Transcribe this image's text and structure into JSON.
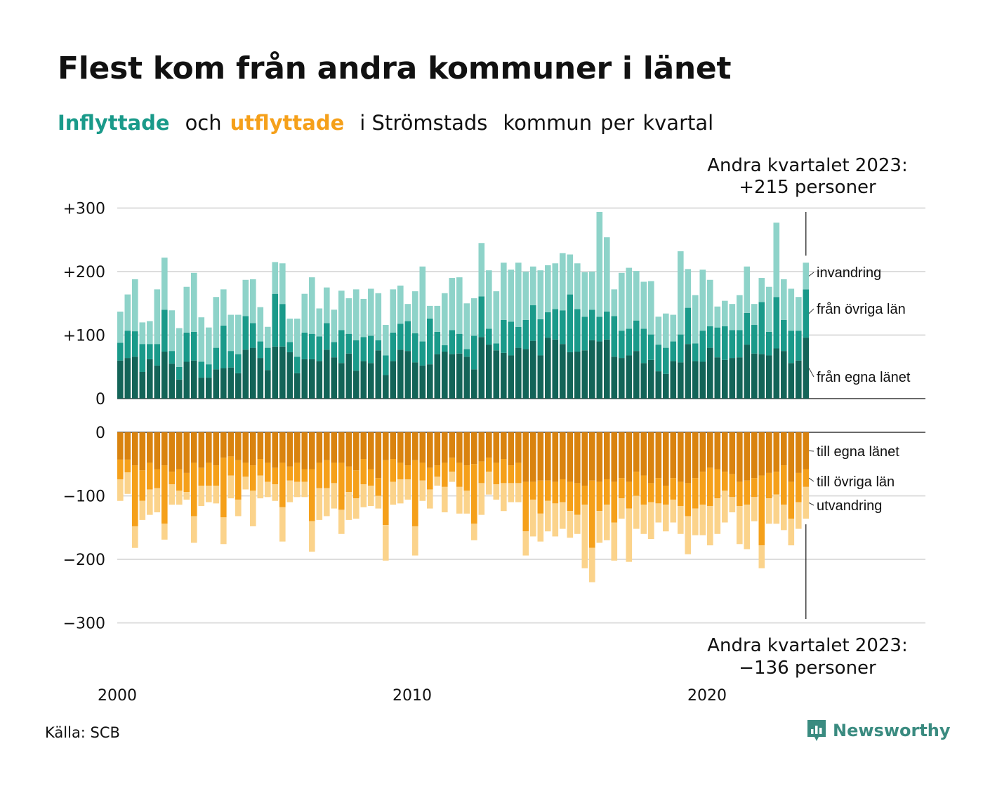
{
  "title": "Flest kom från andra kommuner i länet",
  "subtitle": {
    "inflyttade": "Inflyttade",
    "och": "och",
    "utflyttade": "utflyttade",
    "rest_1": "i Strömstads",
    "rest_2": "kommun",
    "rest_3": "per",
    "rest_4": "kvartal"
  },
  "source": "Källa: SCB",
  "brand": "Newsworthy",
  "colors": {
    "in_egna": "#136458",
    "in_ovriga": "#1a9a8a",
    "in_invandring": "#8ed3c9",
    "ut_egna": "#d9830f",
    "ut_ovriga": "#f5a01a",
    "ut_utvandring": "#fbd38b",
    "grid": "#dddddd",
    "axis": "#111111"
  },
  "chart_data": {
    "type": "bar",
    "stacked": true,
    "x_start": "2000Q1",
    "x_end": "2023Q2",
    "x_ticks": [
      "2000",
      "2010",
      "2020"
    ],
    "top": {
      "yticks": [
        "+300",
        "+200",
        "+100",
        "0"
      ],
      "ytick_values": [
        300,
        200,
        100,
        0
      ],
      "ylim": [
        0,
        300
      ],
      "annotation": [
        "Andra kvartalet 2023:",
        "+215 personer"
      ],
      "series": [
        {
          "name": "från egna länet",
          "values": [
            60,
            64,
            66,
            42,
            62,
            52,
            74,
            55,
            30,
            58,
            60,
            33,
            33,
            46,
            48,
            49,
            40,
            77,
            80,
            64,
            45,
            82,
            82,
            73,
            40,
            62,
            62,
            59,
            77,
            65,
            56,
            71,
            44,
            59,
            56,
            76,
            37,
            59,
            77,
            75,
            57,
            52,
            54,
            70,
            74,
            70,
            71,
            66,
            46,
            97,
            85,
            76,
            72,
            68,
            80,
            78,
            91,
            68,
            96,
            93,
            86,
            73,
            74,
            76,
            92,
            90,
            93,
            66,
            64,
            68,
            75,
            56,
            61,
            43,
            39,
            59,
            57,
            86,
            59,
            58,
            80,
            65,
            61,
            64,
            65,
            85,
            71,
            70,
            68,
            79,
            75,
            56,
            60,
            96
          ]
        },
        {
          "name": "från övriga län",
          "values": [
            28,
            43,
            40,
            44,
            24,
            34,
            66,
            20,
            20,
            46,
            45,
            25,
            21,
            34,
            67,
            26,
            30,
            53,
            39,
            26,
            35,
            83,
            67,
            16,
            26,
            42,
            40,
            39,
            42,
            24,
            52,
            31,
            48,
            38,
            43,
            16,
            31,
            45,
            41,
            47,
            46,
            38,
            72,
            35,
            10,
            38,
            31,
            12,
            53,
            64,
            25,
            11,
            52,
            53,
            33,
            46,
            56,
            57,
            40,
            48,
            53,
            91,
            67,
            53,
            48,
            39,
            44,
            64,
            43,
            42,
            48,
            54,
            40,
            42,
            41,
            31,
            44,
            57,
            28,
            49,
            34,
            47,
            53,
            44,
            43,
            50,
            45,
            82,
            37,
            81,
            49,
            51,
            47,
            76
          ]
        },
        {
          "name": "invandring",
          "values": [
            49,
            57,
            82,
            34,
            36,
            86,
            82,
            64,
            61,
            72,
            93,
            70,
            58,
            80,
            57,
            57,
            62,
            57,
            69,
            54,
            33,
            50,
            64,
            37,
            60,
            61,
            89,
            44,
            56,
            51,
            62,
            56,
            80,
            60,
            74,
            74,
            48,
            68,
            60,
            27,
            66,
            118,
            20,
            41,
            82,
            82,
            89,
            72,
            59,
            84,
            92,
            82,
            90,
            82,
            101,
            76,
            61,
            77,
            74,
            72,
            90,
            63,
            72,
            70,
            60,
            165,
            117,
            42,
            91,
            96,
            78,
            74,
            84,
            44,
            54,
            42,
            131,
            61,
            76,
            96,
            73,
            33,
            40,
            41,
            55,
            73,
            33,
            38,
            71,
            117,
            64,
            66,
            53,
            42
          ]
        }
      ]
    },
    "bottom": {
      "yticks": [
        "0",
        "−100",
        "−200",
        "−300"
      ],
      "ytick_values": [
        0,
        -100,
        -200,
        -300
      ],
      "ylim": [
        -300,
        0
      ],
      "annotation": [
        "Andra kvartalet 2023:",
        "−136 personer"
      ],
      "series": [
        {
          "name": "till egna länet",
          "values": [
            -43,
            -43,
            -52,
            -60,
            -48,
            -58,
            -52,
            -62,
            -58,
            -64,
            -48,
            -56,
            -48,
            -52,
            -40,
            -38,
            -44,
            -48,
            -52,
            -42,
            -48,
            -56,
            -48,
            -54,
            -48,
            -58,
            -58,
            -48,
            -44,
            -48,
            -48,
            -54,
            -60,
            -42,
            -58,
            -72,
            -44,
            -42,
            -48,
            -52,
            -44,
            -48,
            -56,
            -52,
            -48,
            -40,
            -48,
            -52,
            -50,
            -46,
            -40,
            -48,
            -42,
            -52,
            -48,
            -78,
            -78,
            -76,
            -76,
            -78,
            -74,
            -78,
            -80,
            -84,
            -76,
            -78,
            -74,
            -78,
            -72,
            -78,
            -62,
            -68,
            -80,
            -72,
            -84,
            -72,
            -78,
            -80,
            -72,
            -62,
            -56,
            -58,
            -62,
            -66,
            -78,
            -76,
            -72,
            -68,
            -64,
            -62,
            -52,
            -78,
            -64,
            -58
          ]
        },
        {
          "name": "till övriga län",
          "values": [
            -31,
            -20,
            -96,
            -48,
            -42,
            -30,
            -92,
            -20,
            -34,
            -30,
            -84,
            -28,
            -36,
            -32,
            -94,
            -30,
            -62,
            -22,
            -40,
            -26,
            -30,
            -26,
            -70,
            -22,
            -30,
            -20,
            -82,
            -40,
            -44,
            -32,
            -74,
            -40,
            -44,
            -40,
            -26,
            -28,
            -102,
            -36,
            -26,
            -22,
            -104,
            -28,
            -34,
            -18,
            -38,
            -22,
            -38,
            -40,
            -94,
            -34,
            -22,
            -34,
            -38,
            -28,
            -32,
            -78,
            -28,
            -52,
            -32,
            -34,
            -36,
            -46,
            -50,
            -30,
            -106,
            -46,
            -40,
            -64,
            -32,
            -42,
            -38,
            -46,
            -30,
            -40,
            -30,
            -34,
            -38,
            -52,
            -48,
            -52,
            -60,
            -46,
            -30,
            -36,
            -38,
            -38,
            -30,
            -110,
            -40,
            -36,
            -62,
            -58,
            -46,
            -28
          ]
        },
        {
          "name": "utvandring",
          "values": [
            -34,
            -34,
            -34,
            -30,
            -40,
            -38,
            -25,
            -32,
            -22,
            -12,
            -42,
            -32,
            -26,
            -28,
            -42,
            -36,
            -26,
            -20,
            -56,
            -36,
            -24,
            -26,
            -54,
            -34,
            -24,
            -24,
            -48,
            -50,
            -44,
            -40,
            -38,
            -44,
            -32,
            -36,
            -32,
            -20,
            -56,
            -36,
            -38,
            -32,
            -46,
            -32,
            -30,
            -14,
            -40,
            -16,
            -42,
            -36,
            -26,
            -50,
            -36,
            -24,
            -44,
            -30,
            -30,
            -38,
            -58,
            -44,
            -48,
            -52,
            -42,
            -42,
            -30,
            -100,
            -54,
            -50,
            -56,
            -60,
            -32,
            -84,
            -52,
            -46,
            -58,
            -30,
            -42,
            -36,
            -44,
            -60,
            -42,
            -48,
            -62,
            -56,
            -50,
            -24,
            -60,
            -70,
            -38,
            -36,
            -40,
            -46,
            -40,
            -42,
            -42,
            -50
          ]
        }
      ]
    },
    "labels": {
      "top": [
        "invandring",
        "från övriga län",
        "från egna länet"
      ],
      "bottom": [
        "till egna länet",
        "till övriga län",
        "utvandring"
      ]
    }
  }
}
